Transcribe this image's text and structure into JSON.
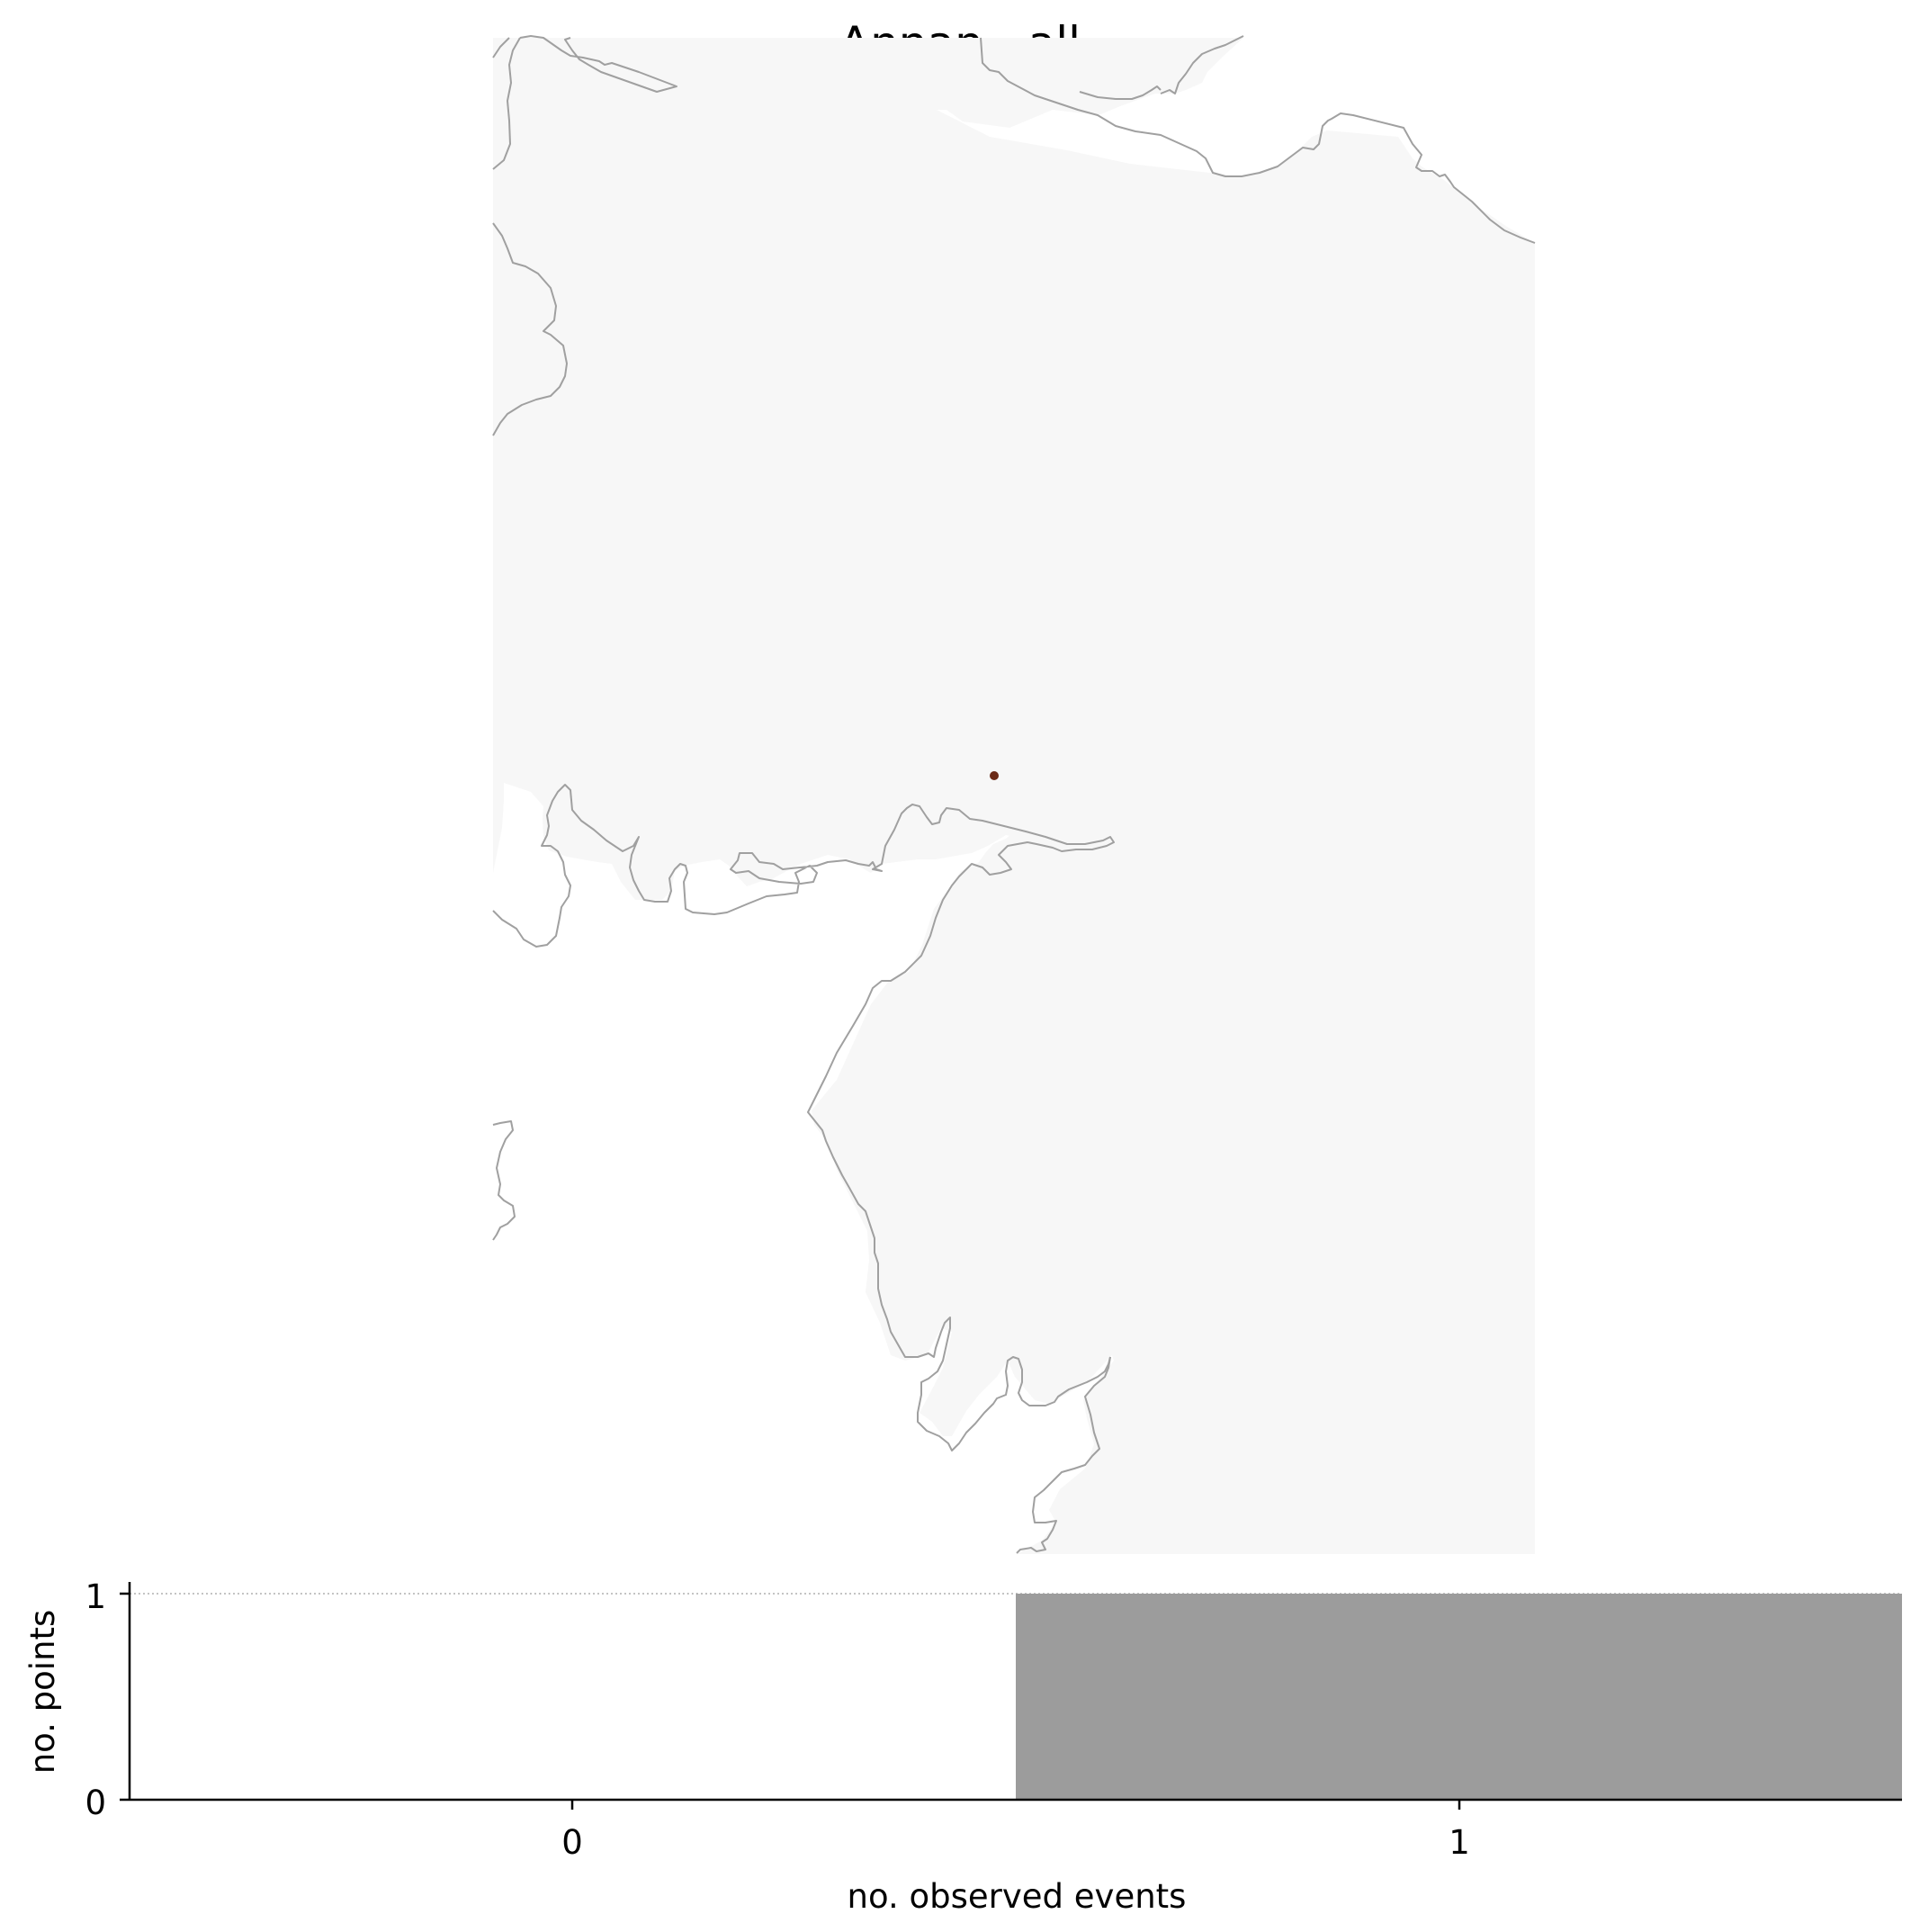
{
  "title": "Annan - all",
  "colors": {
    "land": "#f7f7f7",
    "coastline": "#a0a0a0",
    "station_marker": "#6b2a17",
    "bar": "#9c9c9c",
    "axis": "#000000",
    "ref_line": "#b0b0b0"
  },
  "map": {
    "type": "map",
    "region": "Solway Firth",
    "points": [
      {
        "name": "Annan",
        "observed_events": 1
      }
    ]
  },
  "chart_data": {
    "type": "bar",
    "categories": [
      "0",
      "1"
    ],
    "values": [
      0,
      1
    ],
    "xlabel": "no. observed events",
    "ylabel": "no. points",
    "ylim": [
      0,
      1
    ],
    "yticks": [
      "0",
      "1"
    ],
    "grid": false,
    "reference_line": 1
  }
}
